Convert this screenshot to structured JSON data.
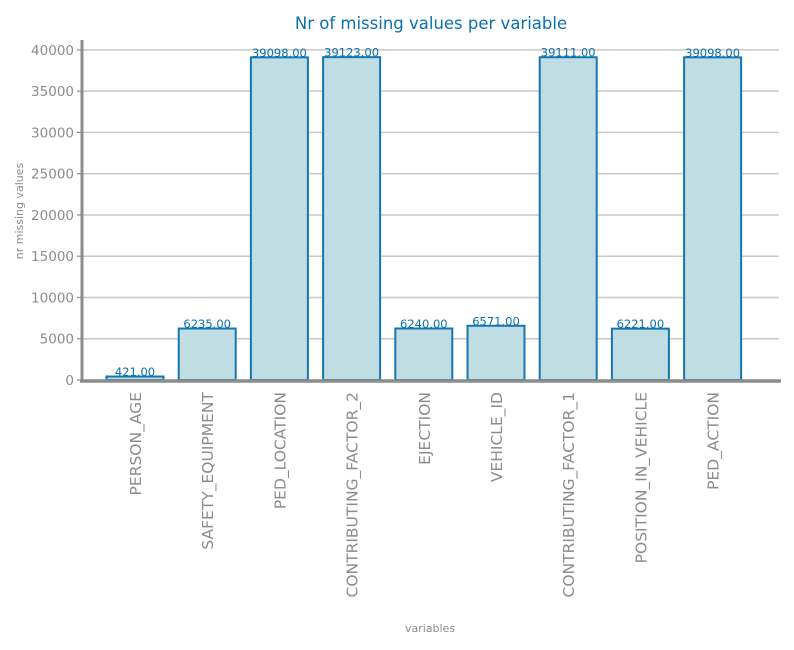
{
  "colors": {
    "accent": "#0b70ae",
    "bar_fill": "#bfdde2",
    "bar_edge": "#1377b3",
    "grid": "#c8c8c8",
    "axis": "#8c8c8c",
    "tick_text": "#8c8c8c"
  },
  "chart_data": {
    "type": "bar",
    "title": "Nr of missing values per variable",
    "xlabel": "variables",
    "ylabel": "nr missing values",
    "categories": [
      "PERSON_AGE",
      "SAFETY_EQUIPMENT",
      "PED_LOCATION",
      "CONTRIBUTING_FACTOR_2",
      "EJECTION",
      "VEHICLE_ID",
      "CONTRIBUTING_FACTOR_1",
      "POSITION_IN_VEHICLE",
      "PED_ACTION"
    ],
    "values": [
      421,
      6235,
      39098,
      39123,
      6240,
      6571,
      39111,
      6221,
      39098
    ],
    "data_labels": [
      "421.00",
      "6235.00",
      "39098.00",
      "39123.00",
      "6240.00",
      "6571.00",
      "39111.00",
      "6221.00",
      "39098.00"
    ],
    "ylim": [
      0,
      41200
    ],
    "yticks": [
      0,
      5000,
      10000,
      15000,
      20000,
      25000,
      30000,
      35000,
      40000
    ],
    "grid": true,
    "legend": "none"
  }
}
